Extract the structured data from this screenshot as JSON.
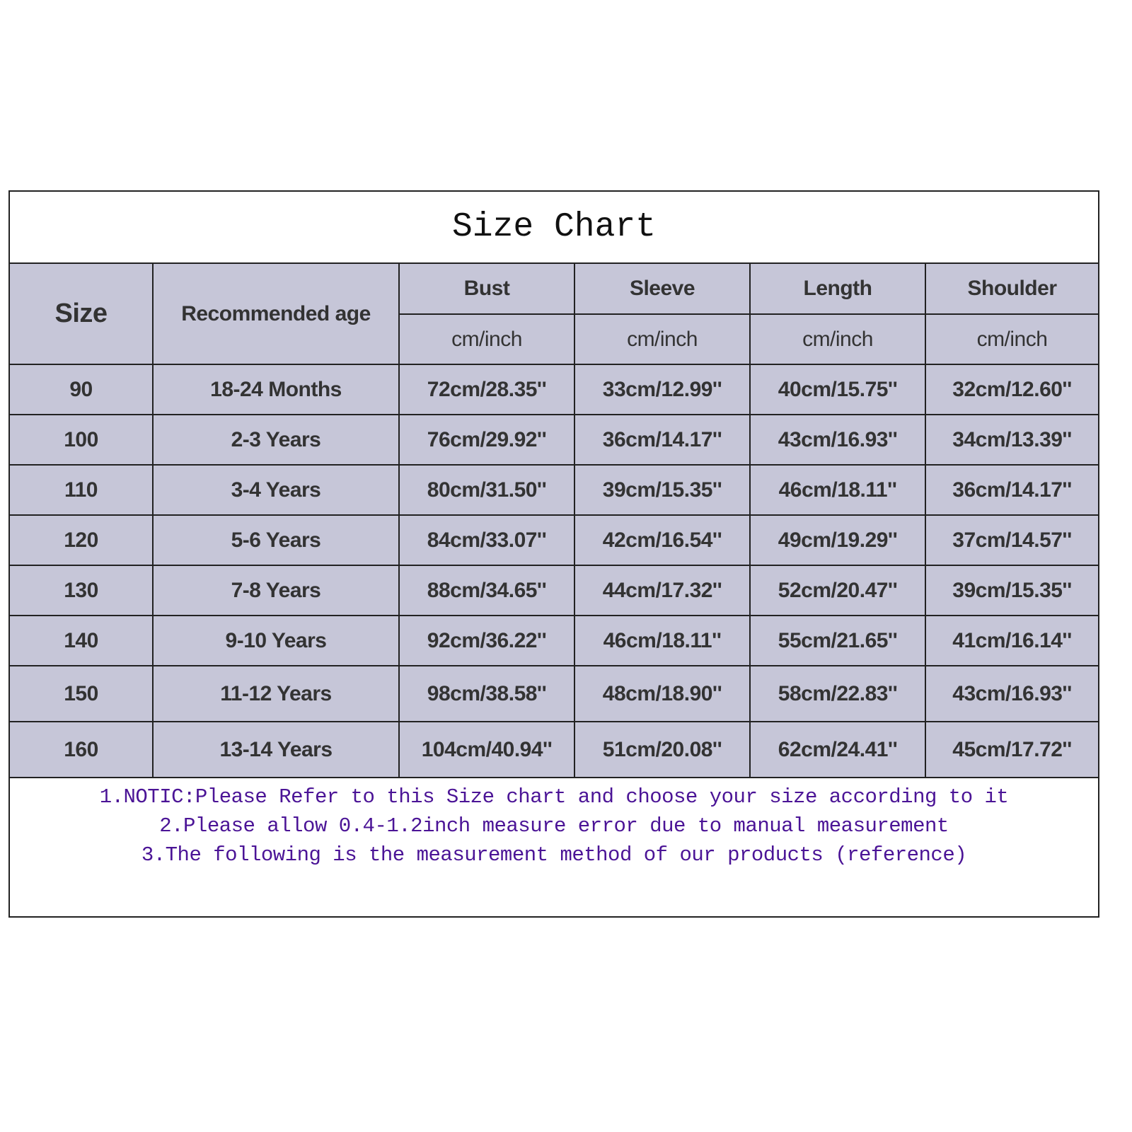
{
  "title": "Size Chart",
  "headers": {
    "size": "Size",
    "age": "Recommended age",
    "measures": [
      "Bust",
      "Sleeve",
      "Length",
      "Shoulder"
    ],
    "unit": "cm/inch"
  },
  "rows": [
    [
      "90",
      "18-24 Months",
      "72cm/28.35''",
      "33cm/12.99''",
      "40cm/15.75''",
      "32cm/12.60''"
    ],
    [
      "100",
      "2-3 Years",
      "76cm/29.92''",
      "36cm/14.17''",
      "43cm/16.93''",
      "34cm/13.39''"
    ],
    [
      "110",
      "3-4 Years",
      "80cm/31.50''",
      "39cm/15.35''",
      "46cm/18.11''",
      "36cm/14.17''"
    ],
    [
      "120",
      "5-6 Years",
      "84cm/33.07''",
      "42cm/16.54''",
      "49cm/19.29''",
      "37cm/14.57''"
    ],
    [
      "130",
      "7-8 Years",
      "88cm/34.65''",
      "44cm/17.32''",
      "52cm/20.47''",
      "39cm/15.35''"
    ],
    [
      "140",
      "9-10 Years",
      "92cm/36.22''",
      "46cm/18.11''",
      "55cm/21.65''",
      "41cm/16.14''"
    ],
    [
      "150",
      "11-12 Years",
      "98cm/38.58''",
      "48cm/18.90''",
      "58cm/22.83''",
      "43cm/16.93''"
    ],
    [
      "160",
      "13-14 Years",
      "104cm/40.94''",
      "51cm/20.08''",
      "62cm/24.41''",
      "45cm/17.72''"
    ]
  ],
  "notes": [
    "1.NOTIC:Please Refer to this Size chart and choose your size according to it",
    "2.Please allow 0.4-1.2inch measure error due to manual measurement",
    "3.The following is the measurement method of our products (reference)"
  ],
  "colors": {
    "cell_bg": "#c6c6d8",
    "note_text": "#4b1496",
    "border": "#222222"
  }
}
